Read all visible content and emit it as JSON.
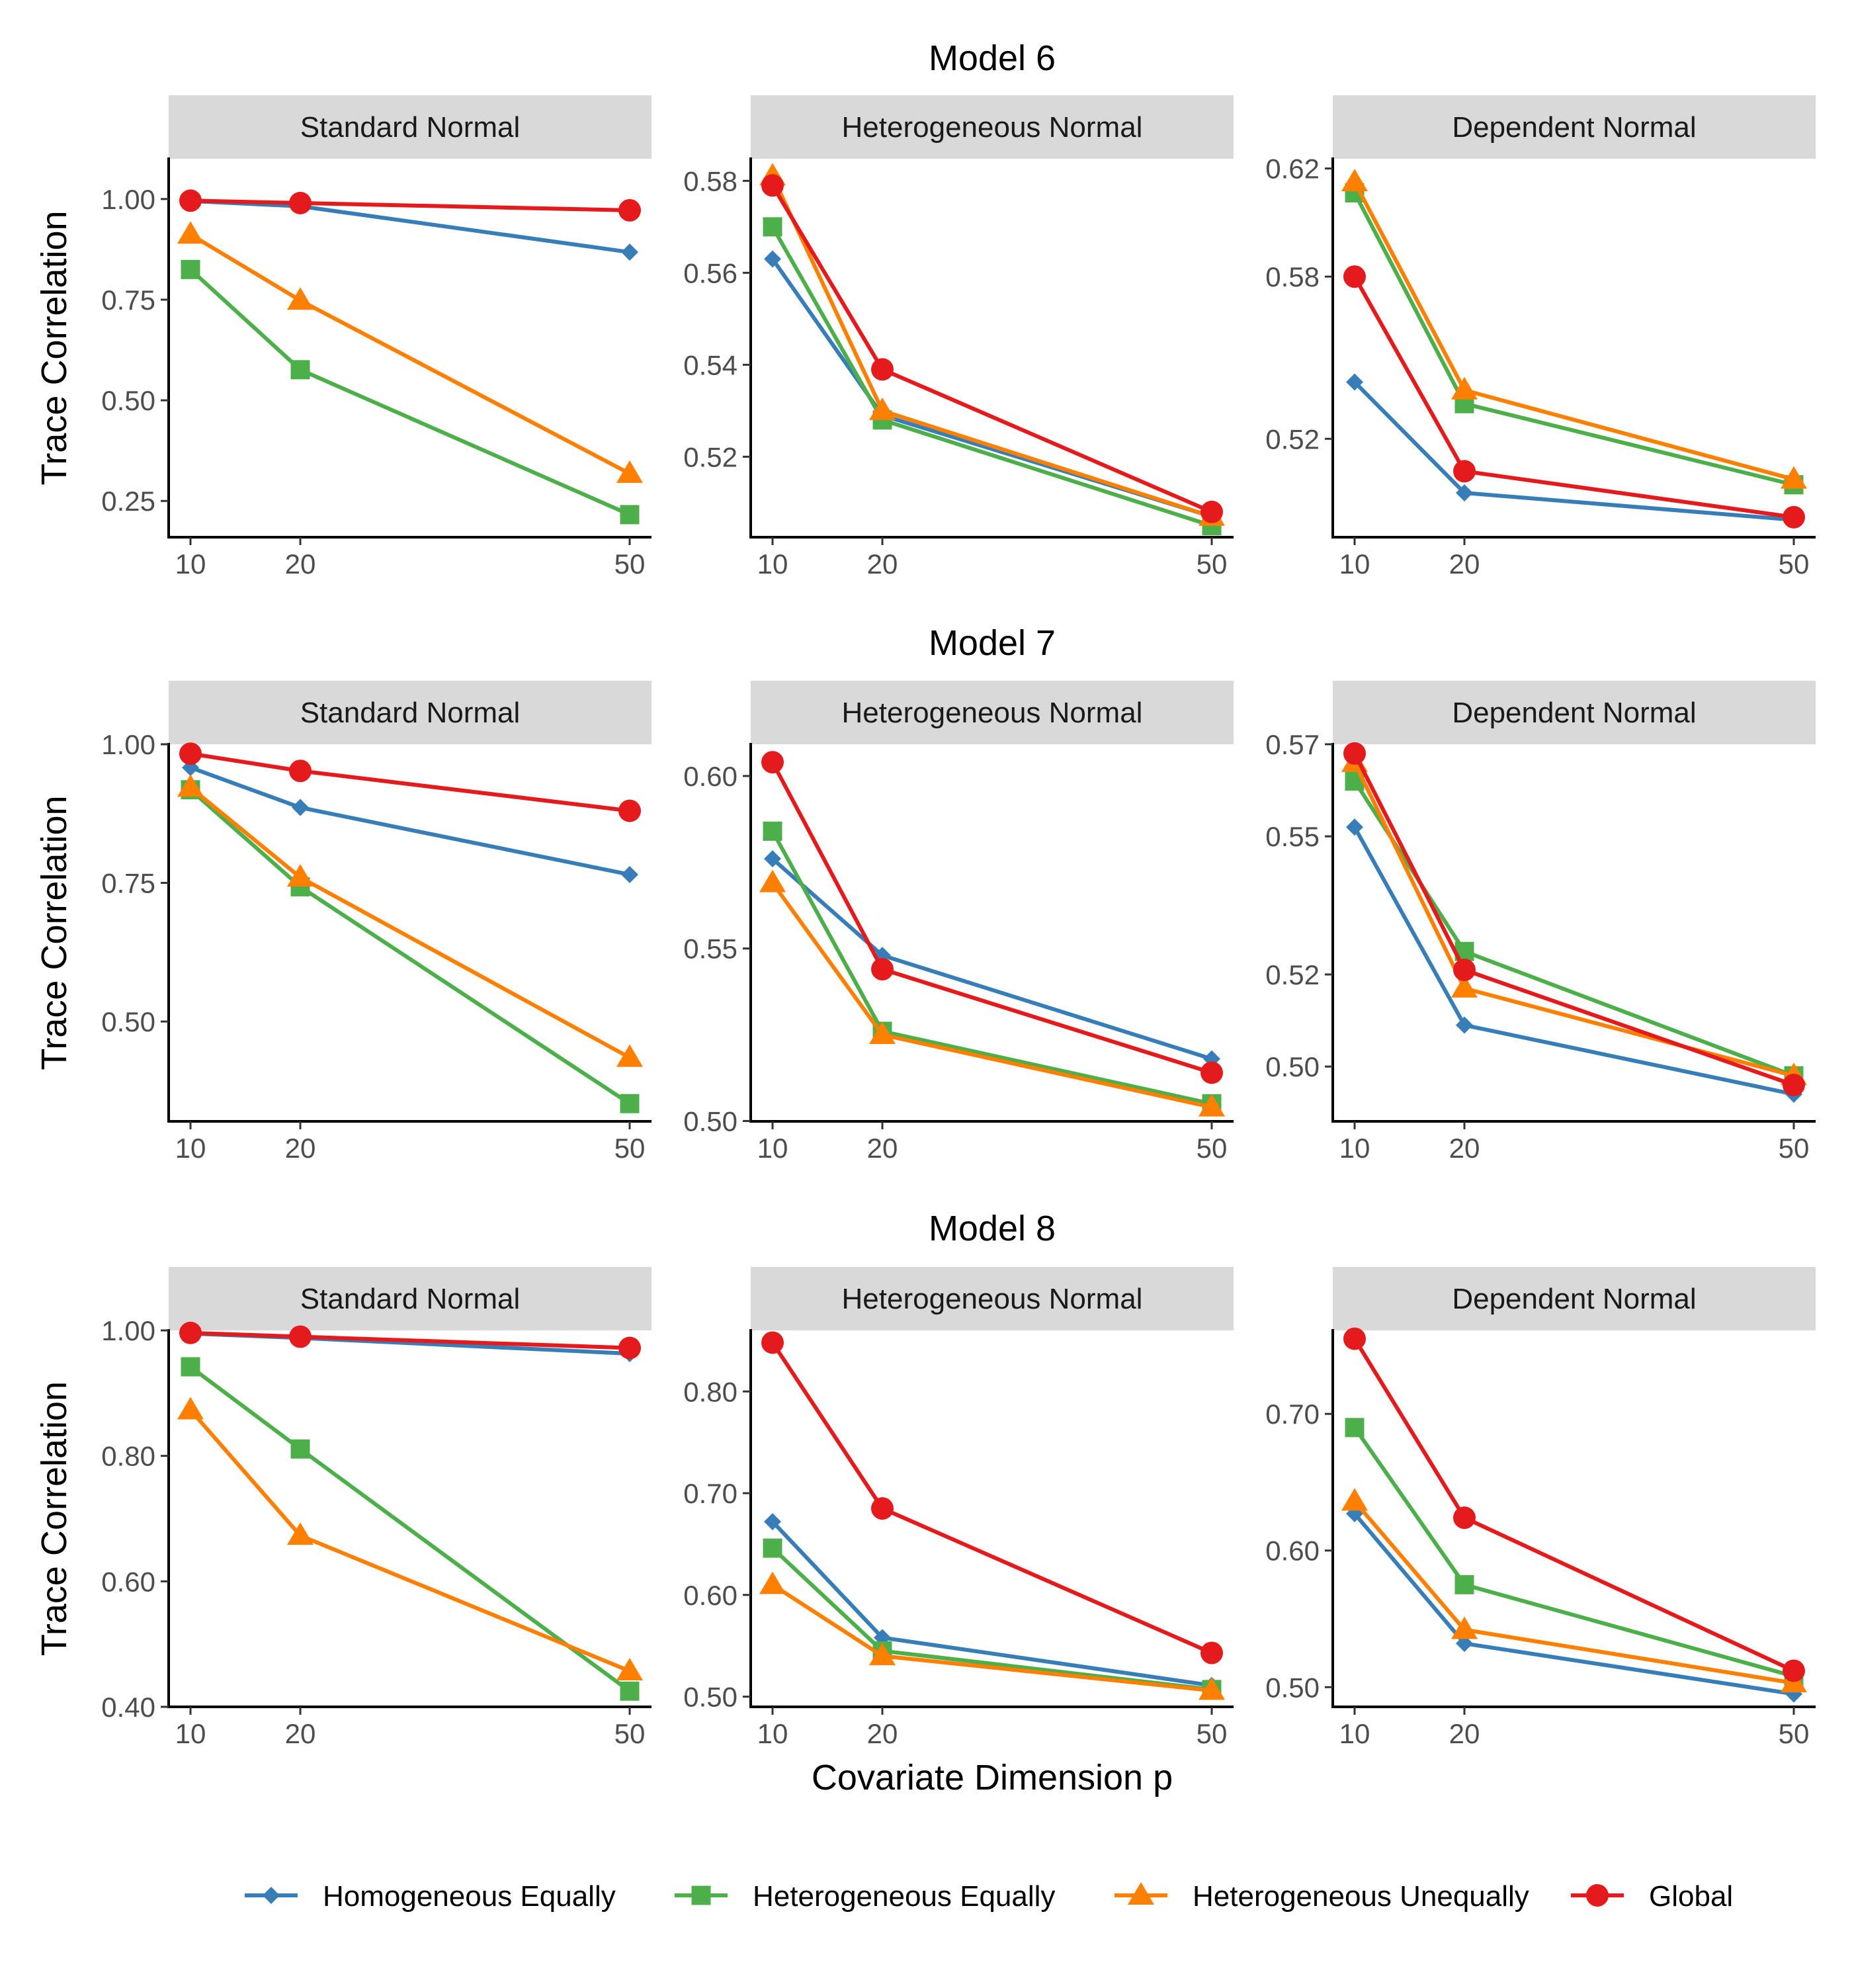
{
  "chart_data": {
    "type": "line",
    "xlabel": "Covariate Dimension p",
    "ylabel": "Trace Correlation",
    "x": [
      10,
      20,
      50
    ],
    "series_names": [
      "Homogeneous Equally",
      "Heterogeneous Equally",
      "Heterogeneous Unequally",
      "Global"
    ],
    "colors": {
      "Homogeneous Equally": "#377EB8",
      "Heterogeneous Equally": "#4DAF4A",
      "Heterogeneous Unequally": "#FF7F00",
      "Global": "#E41A1C"
    },
    "markers": {
      "Homogeneous Equally": "diamond",
      "Heterogeneous Equally": "square",
      "Heterogeneous Unequally": "triangle",
      "Global": "circle"
    },
    "legend_position": "bottom",
    "models": [
      {
        "title": "Model 6",
        "panels": [
          {
            "strip": "Standard Normal",
            "ylim": [
              0.16,
              1.1
            ],
            "yticks": [
              1.0,
              0.75,
              0.5,
              0.25
            ],
            "ytick_labels": [
              "1.00",
              "0.75",
              "0.50",
              "0.25"
            ],
            "series": [
              {
                "name": "Homogeneous Equally",
                "values": [
                  0.995,
                  0.982,
                  0.868
                ]
              },
              {
                "name": "Heterogeneous Equally",
                "values": [
                  0.825,
                  0.576,
                  0.216
                ]
              },
              {
                "name": "Heterogeneous Unequally",
                "values": [
                  0.912,
                  0.748,
                  0.318
                ]
              },
              {
                "name": "Global",
                "values": [
                  0.996,
                  0.99,
                  0.972
                ]
              }
            ]
          },
          {
            "strip": "Heterogeneous Normal",
            "ylim": [
              0.5025,
              0.5848
            ],
            "yticks": [
              0.58,
              0.56,
              0.54,
              0.52
            ],
            "ytick_labels": [
              "0.58",
              "0.56",
              "0.54",
              "0.52"
            ],
            "series": [
              {
                "name": "Homogeneous Equally",
                "values": [
                  0.563,
                  0.529,
                  0.507
                ]
              },
              {
                "name": "Heterogeneous Equally",
                "values": [
                  0.57,
                  0.528,
                  0.505
                ]
              },
              {
                "name": "Heterogeneous Unequally",
                "values": [
                  0.581,
                  0.53,
                  0.507
                ]
              },
              {
                "name": "Global",
                "values": [
                  0.579,
                  0.539,
                  0.508
                ]
              }
            ]
          },
          {
            "strip": "Dependent Normal",
            "ylim": [
              0.4836,
              0.6236
            ],
            "yticks": [
              0.62,
              0.58,
              0.52
            ],
            "ytick_labels": [
              "0.62",
              "0.58",
              "0.52"
            ],
            "series": [
              {
                "name": "Homogeneous Equally",
                "values": [
                  0.541,
                  0.5,
                  0.49
                ]
              },
              {
                "name": "Heterogeneous Equally",
                "values": [
                  0.611,
                  0.533,
                  0.503
                ]
              },
              {
                "name": "Heterogeneous Unequally",
                "values": [
                  0.615,
                  0.538,
                  0.505
                ]
              },
              {
                "name": "Global",
                "values": [
                  0.58,
                  0.508,
                  0.491
                ]
              }
            ]
          }
        ]
      },
      {
        "title": "Model 7",
        "panels": [
          {
            "strip": "Standard Normal",
            "ylim": [
              0.32,
              1.0
            ],
            "yticks": [
              1.0,
              0.75,
              0.5
            ],
            "ytick_labels": [
              "1.00",
              "0.75",
              "0.50"
            ],
            "series": [
              {
                "name": "Homogeneous Equally",
                "values": [
                  0.958,
                  0.886,
                  0.765
                ]
              },
              {
                "name": "Heterogeneous Equally",
                "values": [
                  0.918,
                  0.743,
                  0.352
                ]
              },
              {
                "name": "Heterogeneous Unequally",
                "values": [
                  0.922,
                  0.76,
                  0.435
                ]
              },
              {
                "name": "Global",
                "values": [
                  0.983,
                  0.952,
                  0.88
                ]
              }
            ]
          },
          {
            "strip": "Heterogeneous Normal",
            "ylim": [
              0.4999,
              0.6092
            ],
            "yticks": [
              0.6,
              0.55,
              0.5
            ],
            "ytick_labels": [
              "0.60",
              "0.55",
              "0.50"
            ],
            "series": [
              {
                "name": "Homogeneous Equally",
                "values": [
                  0.576,
                  0.548,
                  0.518
                ]
              },
              {
                "name": "Heterogeneous Equally",
                "values": [
                  0.584,
                  0.526,
                  0.505
                ]
              },
              {
                "name": "Heterogeneous Unequally",
                "values": [
                  0.569,
                  0.525,
                  0.504
                ]
              },
              {
                "name": "Global",
                "values": [
                  0.604,
                  0.544,
                  0.514
                ]
              }
            ]
          },
          {
            "strip": "Dependent Normal",
            "ylim": [
              0.4881,
              0.57
            ],
            "yticks": [
              0.57,
              0.55,
              0.52,
              0.5
            ],
            "ytick_labels": [
              "0.57",
              "0.55",
              "0.52",
              "0.50"
            ],
            "series": [
              {
                "name": "Homogeneous Equally",
                "values": [
                  0.552,
                  0.509,
                  0.494
                ]
              },
              {
                "name": "Heterogeneous Equally",
                "values": [
                  0.562,
                  0.525,
                  0.498
                ]
              },
              {
                "name": "Heterogeneous Unequally",
                "values": [
                  0.566,
                  0.517,
                  0.498
                ]
              },
              {
                "name": "Global",
                "values": [
                  0.568,
                  0.521,
                  0.496
                ]
              }
            ]
          }
        ]
      },
      {
        "title": "Model 8",
        "panels": [
          {
            "strip": "Standard Normal",
            "ylim": [
              0.4,
              1.0
            ],
            "yticks": [
              1.0,
              0.8,
              0.6,
              0.4
            ],
            "ytick_labels": [
              "1.00",
              "0.80",
              "0.60",
              "0.40"
            ],
            "series": [
              {
                "name": "Homogeneous Equally",
                "values": [
                  0.995,
                  0.988,
                  0.963
                ]
              },
              {
                "name": "Heterogeneous Equally",
                "values": [
                  0.942,
                  0.811,
                  0.425
                ]
              },
              {
                "name": "Heterogeneous Unequally",
                "values": [
                  0.873,
                  0.673,
                  0.457
                ]
              },
              {
                "name": "Global",
                "values": [
                  0.996,
                  0.99,
                  0.972
                ]
              }
            ]
          },
          {
            "strip": "Heterogeneous Normal",
            "ylim": [
              0.49,
              0.86
            ],
            "yticks": [
              0.8,
              0.7,
              0.6,
              0.5
            ],
            "ytick_labels": [
              "0.80",
              "0.70",
              "0.60",
              "0.50"
            ],
            "series": [
              {
                "name": "Homogeneous Equally",
                "values": [
                  0.672,
                  0.558,
                  0.511
                ]
              },
              {
                "name": "Heterogeneous Equally",
                "values": [
                  0.646,
                  0.545,
                  0.507
                ]
              },
              {
                "name": "Heterogeneous Unequally",
                "values": [
                  0.61,
                  0.54,
                  0.506
                ]
              },
              {
                "name": "Global",
                "values": [
                  0.848,
                  0.685,
                  0.543
                ]
              }
            ]
          },
          {
            "strip": "Dependent Normal",
            "ylim": [
              0.4856,
              0.7611
            ],
            "yticks": [
              0.7,
              0.6,
              0.5
            ],
            "ytick_labels": [
              "0.70",
              "0.60",
              "0.50"
            ],
            "series": [
              {
                "name": "Homogeneous Equally",
                "values": [
                  0.627,
                  0.532,
                  0.495
                ]
              },
              {
                "name": "Heterogeneous Equally",
                "values": [
                  0.69,
                  0.575,
                  0.508
                ]
              },
              {
                "name": "Heterogeneous Unequally",
                "values": [
                  0.636,
                  0.542,
                  0.503
                ]
              },
              {
                "name": "Global",
                "values": [
                  0.755,
                  0.624,
                  0.512
                ]
              }
            ]
          }
        ]
      }
    ]
  }
}
